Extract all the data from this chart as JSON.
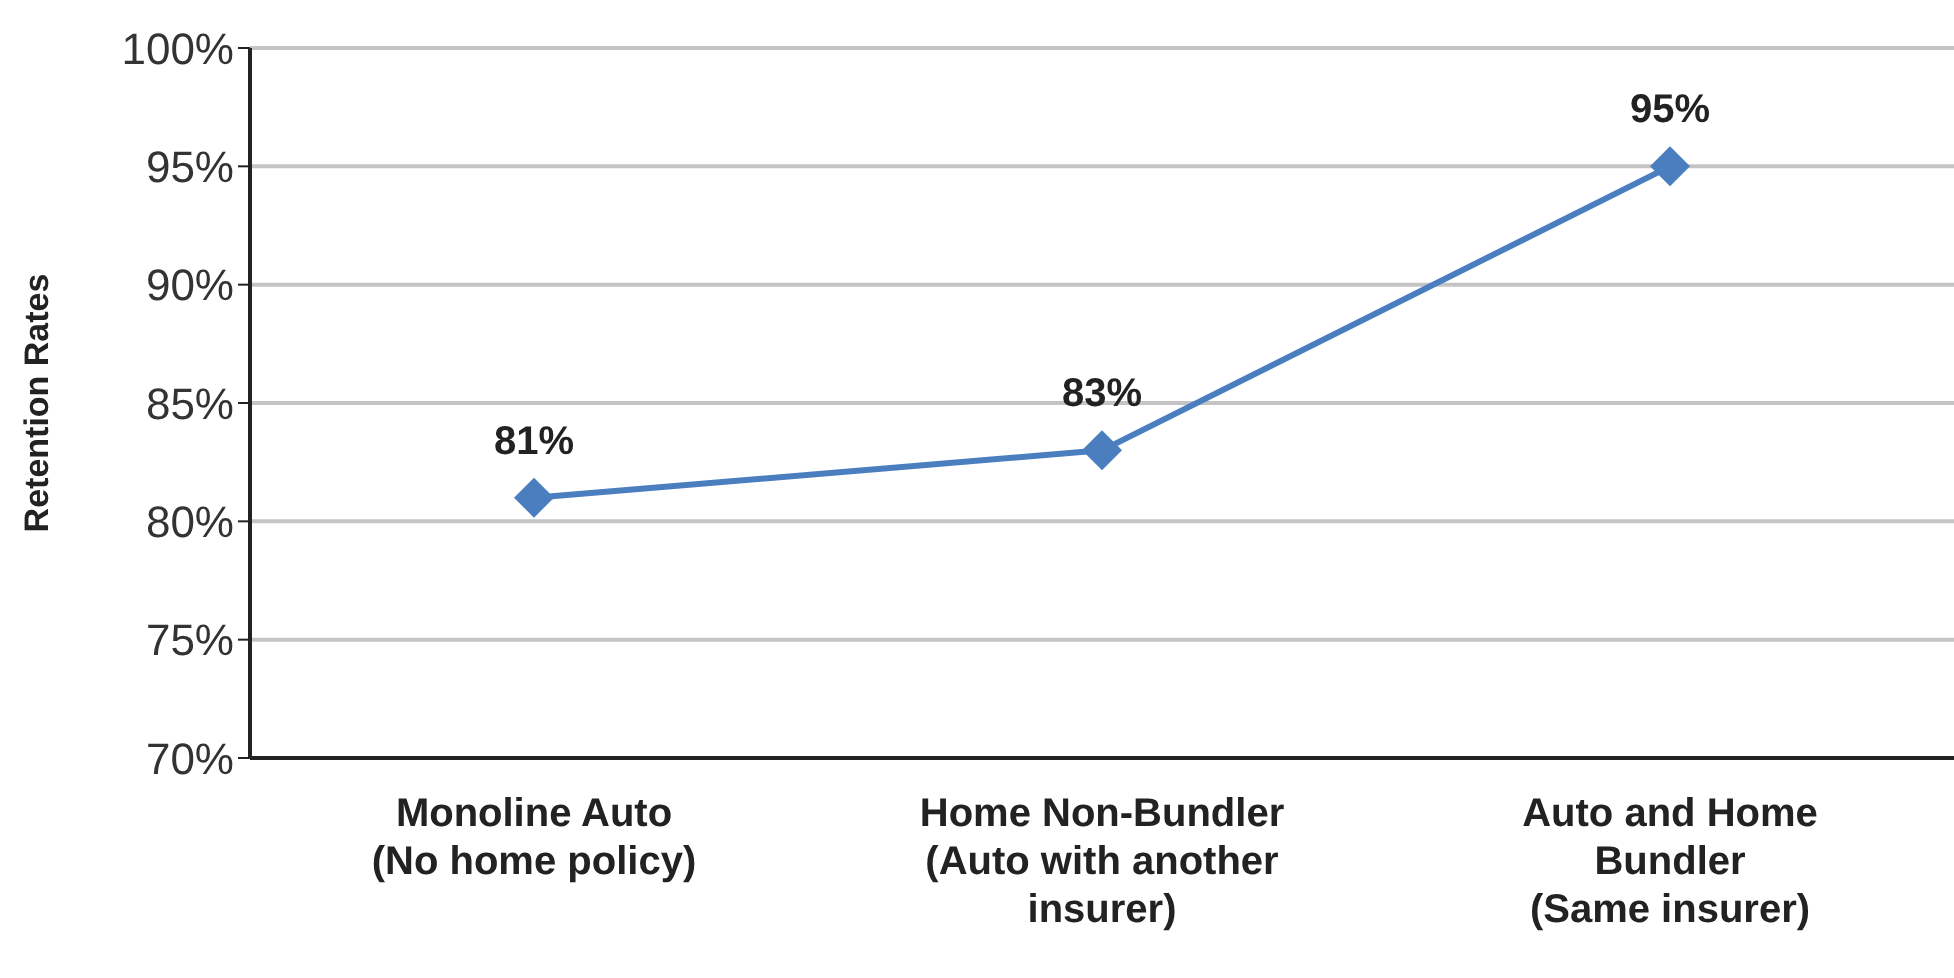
{
  "chart_data": {
    "type": "line",
    "ylabel": "Retention Rates",
    "categories": [
      "Monoline Auto\n(No home policy)",
      "Home Non-Bundler\n(Auto with another\ninsurer)",
      "Auto and Home\nBundler\n(Same insurer)"
    ],
    "series": [
      {
        "color": "#4a7ebf",
        "values": [
          81,
          83,
          95
        ],
        "value_labels": [
          "81%",
          "83%",
          "95%"
        ]
      }
    ],
    "ylim": [
      70,
      100
    ],
    "yticks": [
      {
        "value": 70,
        "label": "70%"
      },
      {
        "value": 75,
        "label": "75%"
      },
      {
        "value": 80,
        "label": "80%"
      },
      {
        "value": 85,
        "label": "85%"
      },
      {
        "value": 90,
        "label": "90%"
      },
      {
        "value": 95,
        "label": "95%"
      },
      {
        "value": 100,
        "label": "100%"
      }
    ],
    "grid": "y",
    "marker": "diamond",
    "line_style": "solid"
  }
}
